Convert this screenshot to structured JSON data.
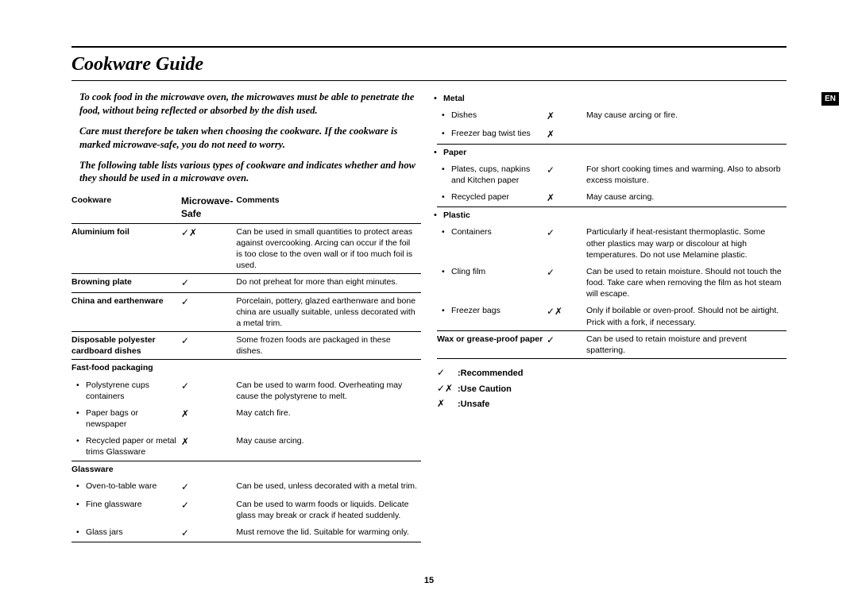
{
  "title": "Cookware Guide",
  "lang_badge": "EN",
  "page_number": "15",
  "intro": [
    "To cook food in the microwave oven, the microwaves must be able to penetrate the food, without being reflected or absorbed by the dish used.",
    "Care must therefore be taken when choosing the cookware.  If the cookware is marked microwave-safe, you do not need to worry.",
    "The following table lists various types of cookware and indicates whether and how they should be used in a microwave oven."
  ],
  "headers": {
    "col1": "Cookware",
    "col2": "Microwave-Safe",
    "col3": "Comments"
  },
  "left_rows": [
    {
      "type": "item",
      "name": "Aluminium foil",
      "bold": true,
      "safe": "✓✗",
      "comment": "Can be used in small quantities to protect areas against overcooking. Arcing can occur if the foil is too close to the oven wall or if too much foil is used.",
      "sep": true
    },
    {
      "type": "item",
      "name": "Browning plate",
      "bold": true,
      "safe": "✓",
      "comment": "Do not preheat for more than eight minutes.",
      "sep": true
    },
    {
      "type": "item",
      "name": "China and earthenware",
      "bold": true,
      "safe": "✓",
      "comment": "Porcelain, pottery, glazed earthenware and bone china are usually suitable, unless decorated with a metal trim.",
      "sep": true
    },
    {
      "type": "item",
      "name": "Disposable polyester cardboard dishes",
      "bold": true,
      "safe": "✓",
      "comment": "Some frozen foods are packaged in these dishes.",
      "sep": true
    },
    {
      "type": "cat",
      "name": "Fast-food packaging"
    },
    {
      "type": "sub",
      "name": "Polystyrene cups containers",
      "safe": "✓",
      "comment": "Can be used to warm food. Overheating may cause the polystyrene to melt."
    },
    {
      "type": "sub",
      "name": "Paper bags or newspaper",
      "safe": "✗",
      "comment": "May catch fire."
    },
    {
      "type": "sub",
      "name": "Recycled paper or metal trims Glassware",
      "safe": "✗",
      "comment": "May cause arcing.",
      "sep": true
    },
    {
      "type": "cat",
      "name": "Glassware"
    },
    {
      "type": "sub",
      "name": "Oven-to-table ware",
      "safe": "✓",
      "comment": "Can be used, unless decorated with a metal trim."
    },
    {
      "type": "sub",
      "name": "Fine glassware",
      "safe": "✓",
      "comment": "Can be used to warm foods or liquids. Delicate glass may break or crack if heated suddenly."
    },
    {
      "type": "sub",
      "name": "Glass jars",
      "safe": "✓",
      "comment": "Must remove the lid. Suitable for warming only.",
      "sep": true
    }
  ],
  "right_rows": [
    {
      "type": "catb",
      "name": "Metal"
    },
    {
      "type": "sub",
      "name": "Dishes",
      "safe": "✗",
      "comment": "May cause arcing or fire."
    },
    {
      "type": "sub",
      "name": "Freezer bag twist ties",
      "safe": "✗",
      "comment": "",
      "sep": true
    },
    {
      "type": "catb",
      "name": "Paper"
    },
    {
      "type": "sub",
      "name": "Plates, cups, napkins and Kitchen paper",
      "safe": "✓",
      "comment": "For short cooking times and warming. Also to absorb excess moisture."
    },
    {
      "type": "sub",
      "name": "Recycled paper",
      "safe": "✗",
      "comment": "May cause arcing.",
      "sep": true
    },
    {
      "type": "catb",
      "name": "Plastic"
    },
    {
      "type": "sub",
      "name": "Containers",
      "safe": "✓",
      "comment": "Particularly if heat-resistant thermoplastic. Some other plastics may warp or discolour at high temperatures. Do not use Melamine plastic."
    },
    {
      "type": "sub",
      "name": "Cling film",
      "safe": "✓",
      "comment": "Can be used to retain moisture. Should not touch the food. Take care when removing the film as hot steam will escape."
    },
    {
      "type": "sub",
      "name": "Freezer bags",
      "safe": "✓✗",
      "comment": "Only if boilable or oven-proof.  Should not be airtight. Prick with a fork, if necessary.",
      "sep": true
    },
    {
      "type": "item",
      "name": "Wax or grease-proof paper",
      "bold": true,
      "safe": "✓",
      "comment": "Can be used to retain moisture and prevent spattering.",
      "sep": true
    }
  ],
  "legend": [
    {
      "sym": "✓",
      "label": ":Recommended"
    },
    {
      "sym": "✓✗",
      "label": ":Use Caution"
    },
    {
      "sym": "✗",
      "label": ":Unsafe"
    }
  ]
}
